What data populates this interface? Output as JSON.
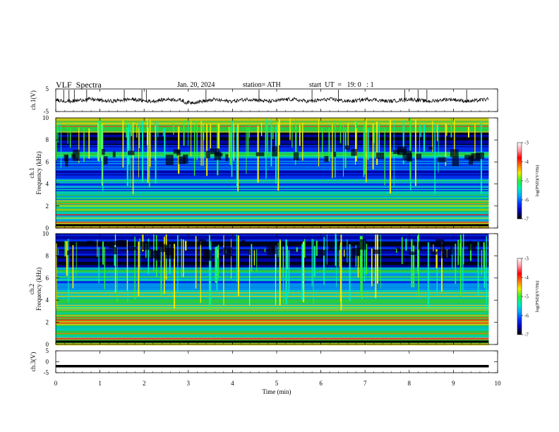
{
  "header": {
    "title": "VLF  Spectra",
    "date": "Jan. 20, 2024",
    "station": "station= ATH",
    "start": "start  UT  =   19: 0   : 1"
  },
  "chart_data": {
    "type": "heatmap",
    "panels": [
      {
        "name": "ch1-waveform",
        "type": "line",
        "ylabel": "ch.1(V)",
        "ylim": [
          -5,
          5
        ],
        "y_ticks": [
          "5",
          "-5"
        ],
        "trace_level": 0,
        "trace_span_min": [
          0,
          9.8
        ],
        "spike_times_min": [
          0.18,
          0.3,
          0.42,
          0.7,
          1.55,
          1.95,
          2.05,
          3.4,
          4.6,
          5.8,
          6.4,
          7.9,
          8.2,
          8.4,
          9.3
        ]
      },
      {
        "name": "ch1-spectrogram",
        "type": "heatmap",
        "ylabel": "ch.1  Frequency  (kHz)",
        "ylim": [
          0,
          10
        ],
        "y_ticks": [
          "0",
          "2",
          "4",
          "6",
          "8",
          "10"
        ],
        "data_span_min": [
          0,
          9.8
        ]
      },
      {
        "name": "ch2-spectrogram",
        "type": "heatmap",
        "ylabel": "ch.2  Frequency  (kHz)",
        "ylim": [
          0,
          10
        ],
        "y_ticks": [
          "0",
          "2",
          "4",
          "6",
          "8",
          "10"
        ],
        "data_span_min": [
          0,
          9.8
        ]
      },
      {
        "name": "ch3-waveform",
        "type": "line",
        "ylabel": "ch.3(V)",
        "ylim": [
          -5,
          5
        ],
        "y_ticks": [
          "5",
          "0",
          "-5"
        ],
        "trace_level": -2,
        "trace_span_min": [
          0,
          9.8
        ]
      }
    ],
    "x_axis": {
      "label": "Time  (min)",
      "range": [
        0,
        10
      ],
      "ticks": [
        "0",
        "1",
        "2",
        "3",
        "4",
        "5",
        "6",
        "7",
        "8",
        "9",
        "10"
      ]
    },
    "colorbar": {
      "label": "log(PSD)(V²/Hz)",
      "range": [
        -7,
        -3
      ],
      "ticks": [
        "-3",
        "-4",
        "-5",
        "-6",
        "-7"
      ],
      "colors": [
        "#000000",
        "#0000aa",
        "#0033ff",
        "#00aaff",
        "#00eebb",
        "#33ee33",
        "#eeee00",
        "#ff7700",
        "#ff0000",
        "#ff99aa",
        "#ffffff"
      ]
    }
  }
}
